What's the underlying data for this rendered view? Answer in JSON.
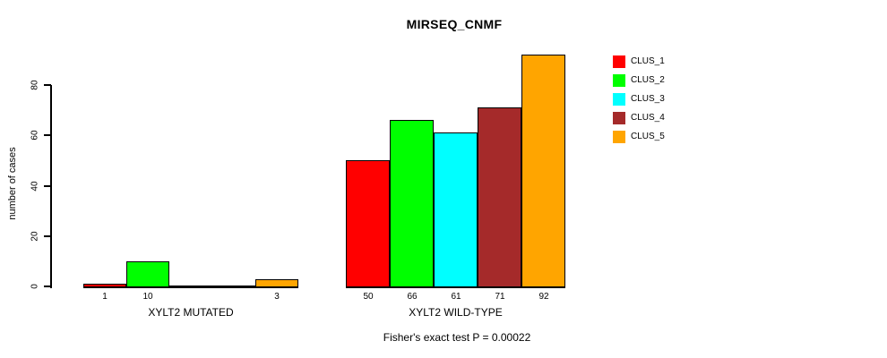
{
  "chart_data": {
    "type": "bar",
    "title": "MIRSEQ_CNMF",
    "ylabel": "number of cases",
    "xlabel": "",
    "ylim": [
      0,
      95
    ],
    "yticks": [
      "0",
      "20",
      "40",
      "60",
      "80"
    ],
    "grid": false,
    "legend_position": "right",
    "categories": [
      "XYLT2 MUTATED",
      "XYLT2 WILD-TYPE"
    ],
    "series": [
      {
        "name": "CLUS_1",
        "color": "#ff0000",
        "values": [
          1,
          50
        ]
      },
      {
        "name": "CLUS_2",
        "color": "#00ff00",
        "values": [
          10,
          66
        ]
      },
      {
        "name": "CLUS_3",
        "color": "#00ffff",
        "values": [
          0,
          61
        ]
      },
      {
        "name": "CLUS_4",
        "color": "#a52a2a",
        "values": [
          0,
          71
        ]
      },
      {
        "name": "CLUS_5",
        "color": "#ffa500",
        "values": [
          3,
          92
        ]
      }
    ],
    "value_labels": {
      "mutated": [
        "1",
        "10",
        "",
        "",
        "3"
      ],
      "wildtype": [
        "50",
        "66",
        "61",
        "71",
        "92"
      ]
    },
    "annotation": "Fisher's exact test P = 0.00022"
  }
}
